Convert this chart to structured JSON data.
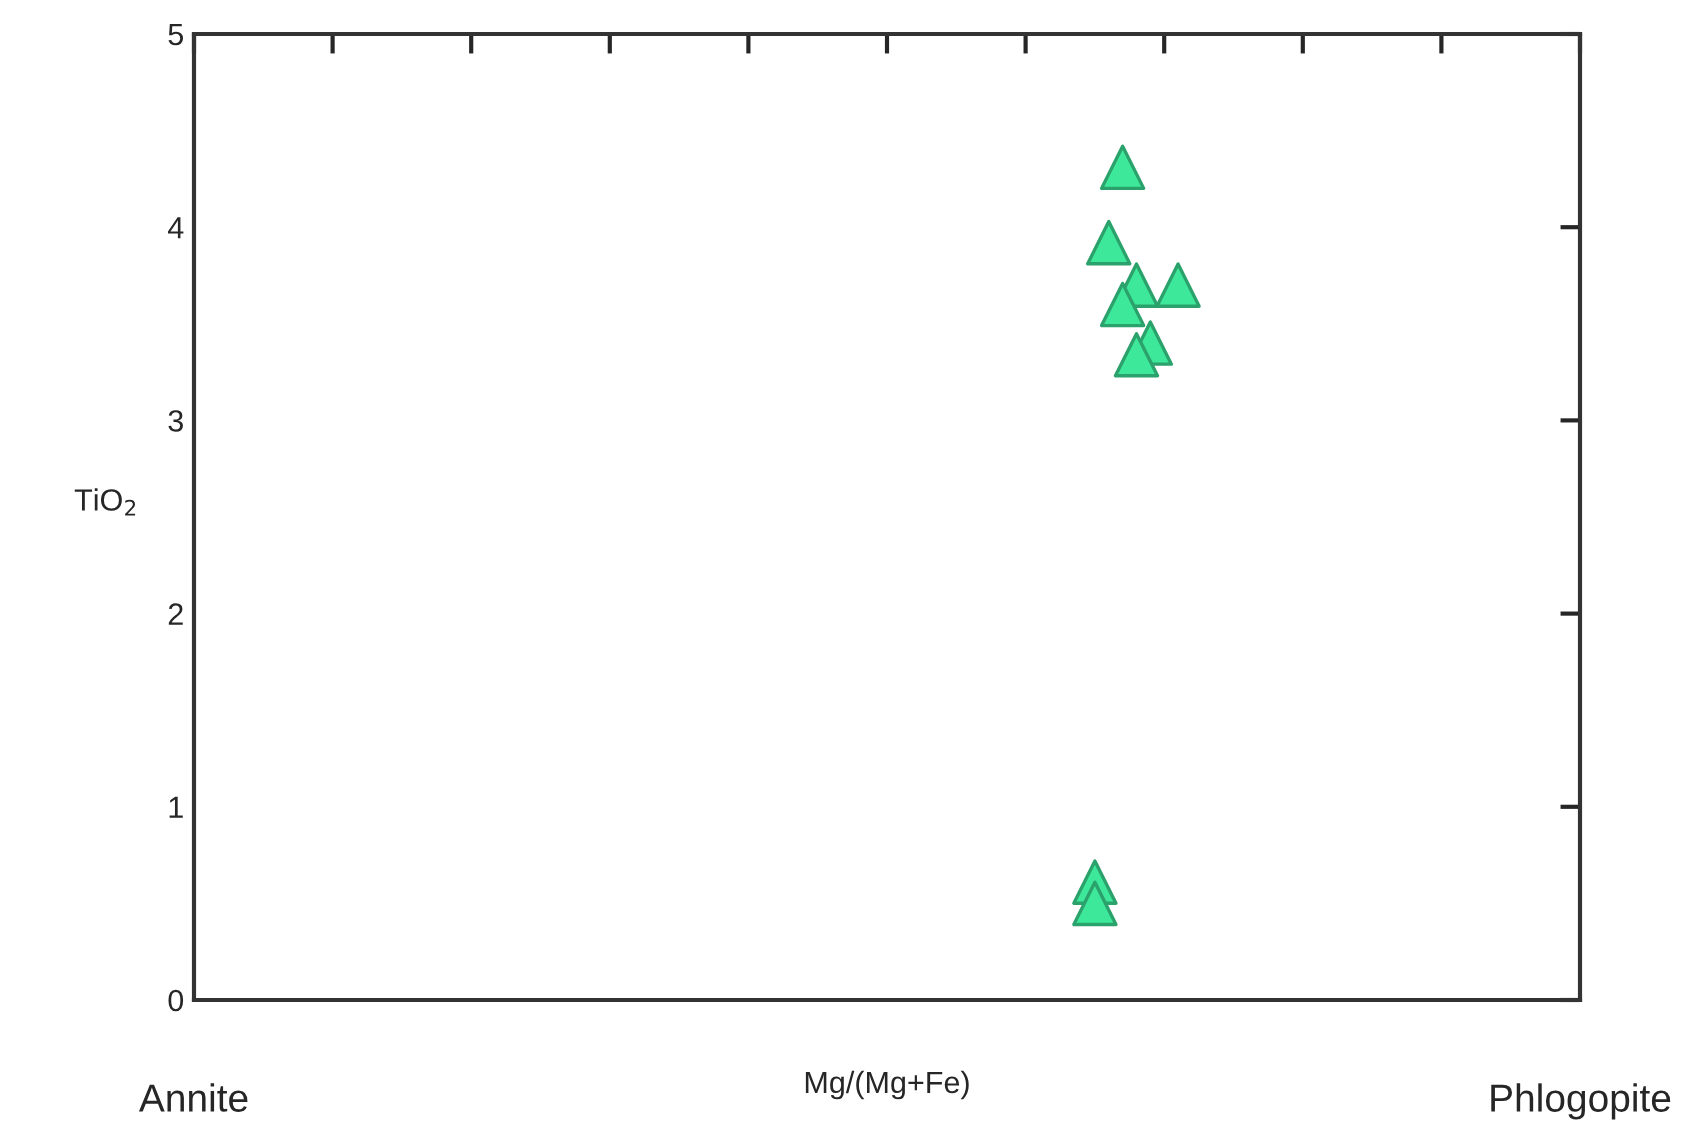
{
  "chart_data": {
    "type": "scatter",
    "xlabel": "Mg/(Mg+Fe)",
    "ylabel": "TiO$_{2}$",
    "annotations": [
      "Annite",
      "Phlogopite"
    ],
    "categories": [
      null,
      null,
      null,
      null,
      null,
      null,
      null,
      null,
      null,
      null,
      null,
      null,
      null,
      null,
      null,
      null,
      null,
      null,
      null,
      null,
      null,
      null,
      null,
      null,
      null,
      null,
      null,
      null,
      null,
      null,
      null,
      null,
      null,
      null,
      null,
      null,
      null,
      null,
      null,
      null,
      null,
      null,
      null,
      null,
      null,
      null,
      null,
      null,
      null,
      null,
      null,
      null,
      null,
      null,
      null,
      null,
      null,
      null,
      null,
      null,
      null,
      null,
      null,
      null,
      null,
      null,
      null,
      null,
      null,
      null,
      null,
      null,
      null,
      null,
      null,
      null,
      null,
      null,
      null,
      null,
      null,
      null,
      null,
      null,
      null,
      null,
      null,
      null,
      null,
      null,
      null,
      null,
      null,
      null,
      null,
      null,
      null,
      null,
      null,
      null,
      null
    ],
    "series": [
      {
        "color": "#3ee89a",
        "values": [
          null,
          null,
          null,
          null,
          null,
          null,
          null,
          null,
          null,
          null,
          null,
          null,
          null,
          null,
          null,
          null,
          null,
          null,
          null,
          null,
          null,
          null,
          null,
          null,
          null,
          null,
          null,
          null,
          null,
          null,
          null,
          null,
          null,
          null,
          null,
          null,
          null,
          null,
          null,
          null,
          null,
          null,
          null,
          null,
          null,
          null,
          null,
          null,
          null,
          null,
          null,
          null,
          null,
          null,
          null,
          null,
          null,
          null,
          null,
          null,
          null,
          null,
          null,
          null,
          null,
          0.61,
          3.92,
          4.31,
          3.7,
          3.4,
          null,
          3.7,
          null,
          null,
          null,
          null,
          null,
          null,
          null,
          null,
          null,
          null,
          null,
          null,
          null,
          null,
          null,
          null,
          null,
          null,
          null,
          null,
          null,
          null,
          null,
          null,
          null,
          null,
          null,
          null,
          null
        ]
      },
      {
        "color": "#3ee89a",
        "values": [
          null,
          null,
          null,
          null,
          null,
          null,
          null,
          null,
          null,
          null,
          null,
          null,
          null,
          null,
          null,
          null,
          null,
          null,
          null,
          null,
          null,
          null,
          null,
          null,
          null,
          null,
          null,
          null,
          null,
          null,
          null,
          null,
          null,
          null,
          null,
          null,
          null,
          null,
          null,
          null,
          null,
          null,
          null,
          null,
          null,
          null,
          null,
          null,
          null,
          null,
          null,
          null,
          null,
          null,
          null,
          null,
          null,
          null,
          null,
          null,
          null,
          null,
          null,
          null,
          null,
          0.5,
          null,
          3.6,
          3.34,
          null,
          null,
          null,
          null,
          null,
          null,
          null,
          null,
          null,
          null,
          null,
          null,
          null,
          null,
          null,
          null,
          null,
          null,
          null,
          null,
          null,
          null,
          null,
          null,
          null,
          null,
          null,
          null,
          null,
          null,
          null,
          null
        ]
      }
    ],
    "marker": "triangle",
    "grid": false,
    "ylim": [
      0,
      5
    ],
    "yticks": [
      0,
      1,
      2,
      3,
      4,
      5
    ]
  }
}
